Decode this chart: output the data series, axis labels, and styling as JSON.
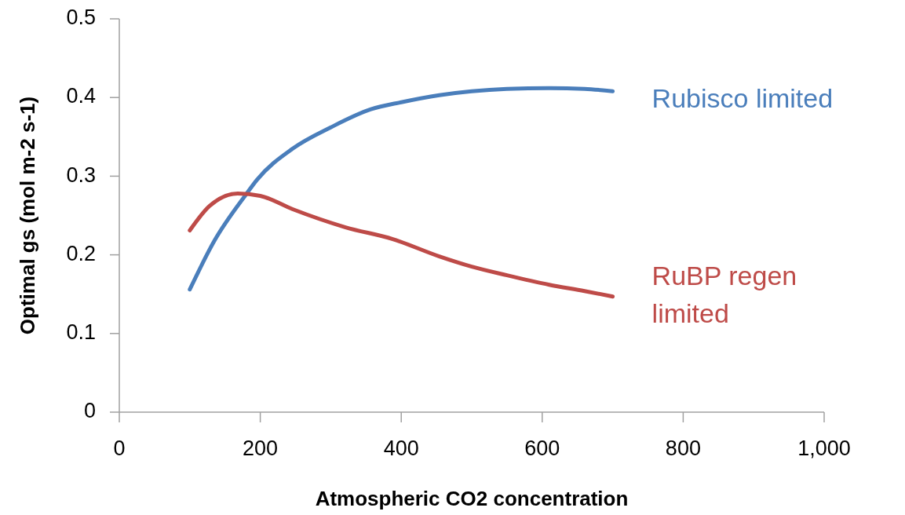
{
  "chart_data": {
    "type": "line",
    "xlabel": "Atmospheric CO2 concentration",
    "ylabel": "Optimal gs (mol m-2 s-1)",
    "xlim": [
      0,
      1000
    ],
    "xticks": [
      0,
      200,
      400,
      600,
      800,
      {
        "value": 1000,
        "label": "1,000"
      }
    ],
    "ylim": [
      0,
      0.5
    ],
    "yticks": [
      0,
      0.1,
      0.2,
      0.3,
      0.4,
      0.5
    ],
    "grid": false,
    "marker": "none",
    "line_style": "solid",
    "series": [
      {
        "name": "Rubisco limited",
        "color": "#4a7ebb",
        "x": [
          100,
          135,
          180,
          195,
          246,
          300,
          357,
          400,
          454,
          500,
          550,
          610,
          660,
          700
        ],
        "values": [
          0.156,
          0.218,
          0.277,
          0.295,
          0.335,
          0.362,
          0.385,
          0.394,
          0.403,
          0.408,
          0.411,
          0.412,
          0.411,
          0.408
        ]
      },
      {
        "name": "RuBP regen limited",
        "color": "#be4b48",
        "x": [
          100,
          128,
          168,
          200,
          246,
          321,
          388,
          454,
          500,
          550,
          610,
          660,
          700
        ],
        "values": [
          0.231,
          0.262,
          0.278,
          0.275,
          0.258,
          0.235,
          0.22,
          0.198,
          0.185,
          0.174,
          0.162,
          0.154,
          0.147
        ]
      }
    ]
  }
}
